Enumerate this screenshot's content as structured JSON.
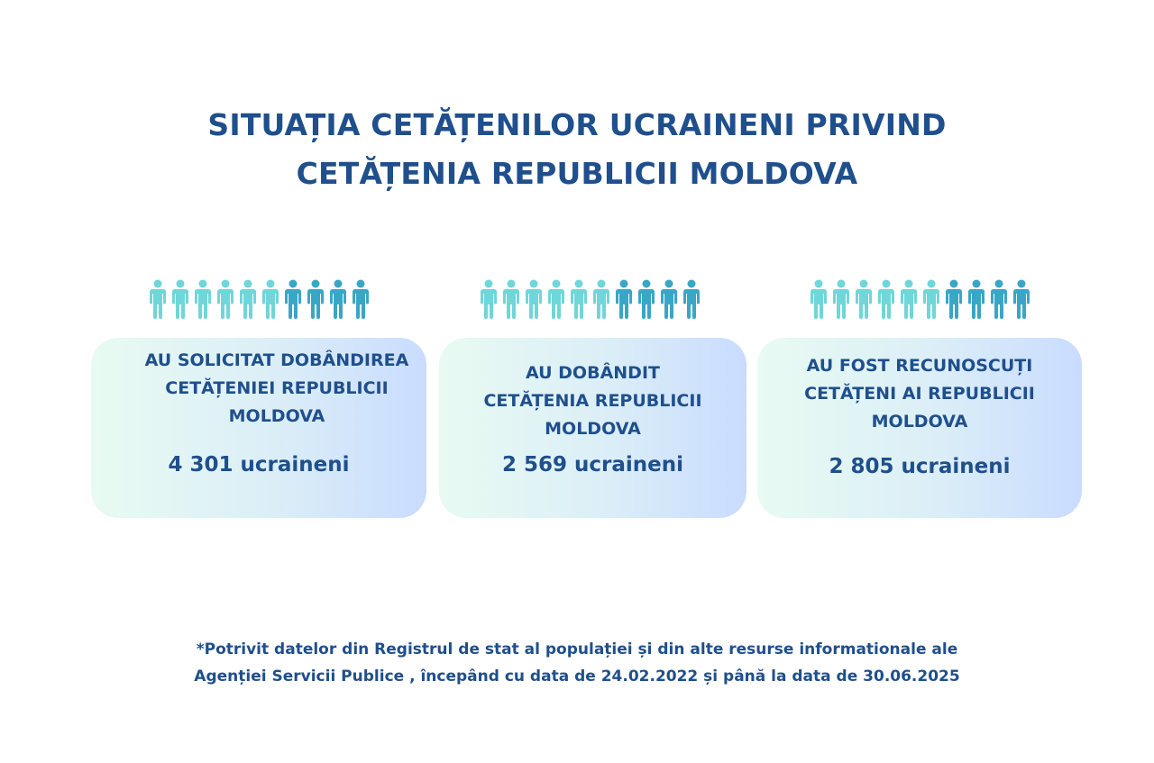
{
  "title": {
    "line1": "SITUAȚIA CETĂȚENILOR UCRAINENI PRIVIND",
    "line2": "CETĂȚENIA REPUBLICII MOLDOVA"
  },
  "colors": {
    "text": "#1f4f8c",
    "person_light": "#6fd6d9",
    "person_dark": "#3aa6c6"
  },
  "people_icon": "person-icon",
  "cards": [
    {
      "label": [
        "AU SOLICITAT DOBÂNDIREA",
        "CETĂȚENIEI REPUBLICII",
        "MOLDOVA"
      ],
      "value": "4 301 ucraineni"
    },
    {
      "label": [
        "AU DOBÂNDIT",
        "CETĂȚENIA REPUBLICII",
        "MOLDOVA"
      ],
      "value": "2 569  ucraineni"
    },
    {
      "label": [
        "AU FOST RECUNOSCUȚI",
        "CETĂȚENI AI REPUBLICII",
        "MOLDOVA"
      ],
      "value": "2 805 ucraineni"
    }
  ],
  "footnote": {
    "line1": "*Potrivit datelor din Registrul de stat al populației și din alte resurse informationale ale",
    "line2": "Agenției Servicii Publice , începând cu data de 24.02.2022 și până la data de 30.06.2025"
  }
}
